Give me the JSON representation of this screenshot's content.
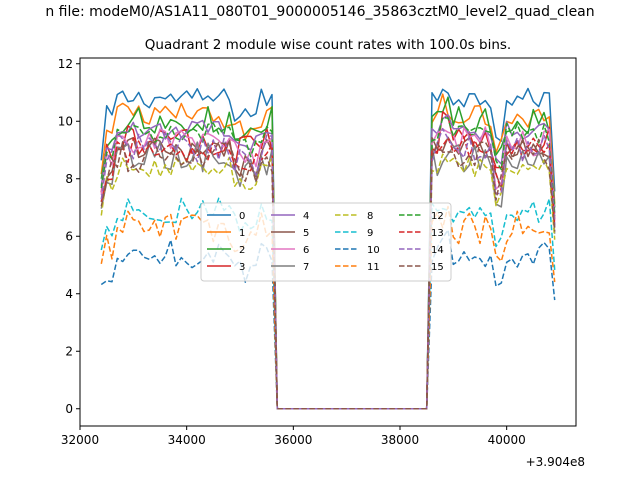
{
  "suptitle": "n file: modeM0/AS1A11_080T01_9000005146_35863cztM0_level2_quad_clean",
  "chart_data": {
    "type": "line",
    "title": "Quadrant 2 module wise count rates with 100.0s bins.",
    "xlabel": "",
    "ylabel": "",
    "x_offset_label": "+3.904e8",
    "xlim": [
      32000,
      41300
    ],
    "ylim": [
      -0.6,
      12.2
    ],
    "xticks": [
      32000,
      34000,
      36000,
      38000,
      40000
    ],
    "xtick_labels": [
      "32000",
      "34000",
      "36000",
      "38000",
      "40000"
    ],
    "yticks": [
      0,
      2,
      4,
      6,
      8,
      10,
      12
    ],
    "ytick_labels": [
      "0",
      "2",
      "4",
      "6",
      "8",
      "10",
      "12"
    ],
    "grid": false,
    "legend_position": "center",
    "legend_columns": 4,
    "segments": [
      {
        "start": 32400,
        "end": 35600
      },
      {
        "start": 38600,
        "end": 40900
      }
    ],
    "gap": {
      "start": 35700,
      "end": 38500,
      "value": 0
    },
    "series": [
      {
        "name": "0",
        "color": "#1f77b4",
        "dash": false,
        "level": 10.8
      },
      {
        "name": "1",
        "color": "#ff7f0e",
        "dash": false,
        "level": 10.2
      },
      {
        "name": "2",
        "color": "#2ca02c",
        "dash": false,
        "level": 10.0
      },
      {
        "name": "3",
        "color": "#d62728",
        "dash": false,
        "level": 9.4
      },
      {
        "name": "4",
        "color": "#9467bd",
        "dash": false,
        "level": 9.7
      },
      {
        "name": "5",
        "color": "#8c564b",
        "dash": false,
        "level": 9.0
      },
      {
        "name": "6",
        "color": "#e377c2",
        "dash": false,
        "level": 9.3
      },
      {
        "name": "7",
        "color": "#7f7f7f",
        "dash": false,
        "level": 8.7
      },
      {
        "name": "8",
        "color": "#bcbd22",
        "dash": true,
        "level": 8.4
      },
      {
        "name": "9",
        "color": "#17becf",
        "dash": true,
        "level": 6.9
      },
      {
        "name": "10",
        "color": "#1f77b4",
        "dash": true,
        "level": 5.4
      },
      {
        "name": "11",
        "color": "#ff7f0e",
        "dash": true,
        "level": 6.3
      },
      {
        "name": "12",
        "color": "#2ca02c",
        "dash": true,
        "level": 9.6
      },
      {
        "name": "13",
        "color": "#d62728",
        "dash": true,
        "level": 9.0
      },
      {
        "name": "14",
        "color": "#9467bd",
        "dash": true,
        "level": 9.1
      },
      {
        "name": "15",
        "color": "#8c564b",
        "dash": true,
        "level": 8.8
      }
    ]
  }
}
